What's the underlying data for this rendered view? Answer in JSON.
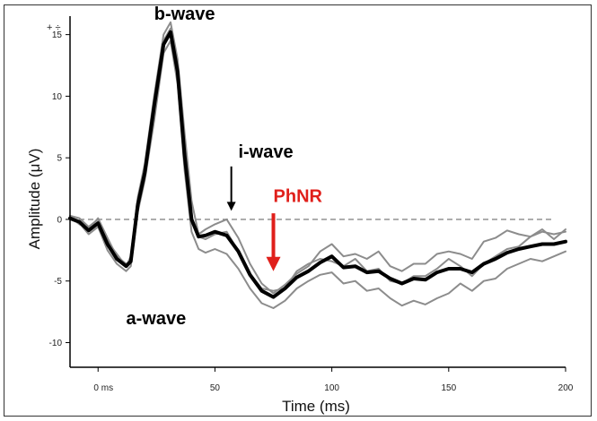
{
  "chart_data": {
    "type": "line",
    "xlabel": "Time (ms)",
    "ylabel": "Amplitude (μV)",
    "xlim": [
      -12,
      200
    ],
    "ylim": [
      -12,
      16.5
    ],
    "grid": false,
    "x_ticks": [
      0,
      50,
      100,
      150,
      200
    ],
    "x_tick_labels": [
      "0 ms",
      "50",
      "100",
      "150",
      "200"
    ],
    "y_ticks": [
      -10,
      -5,
      0,
      5,
      10,
      15
    ],
    "y_tick_labels": [
      "-10",
      "-5",
      "0",
      "5",
      "10",
      "15"
    ],
    "top_left_symbols": "+ ÷",
    "baseline": {
      "y": 0,
      "x_range": [
        -12,
        195
      ],
      "style": "dashed",
      "color": "#888888"
    },
    "series": [
      {
        "role": "individual trace 1",
        "color": "#8c8c8c",
        "x": [
          -12,
          -8,
          -4,
          0,
          4,
          8,
          12,
          14,
          17,
          20,
          24,
          28,
          31,
          34,
          37,
          40,
          43,
          46,
          50,
          55,
          60,
          65,
          70,
          75,
          80,
          85,
          90,
          95,
          100,
          105,
          110,
          115,
          120,
          125,
          130,
          135,
          140,
          145,
          150,
          155,
          160,
          165,
          170,
          175,
          180,
          185,
          190,
          195,
          200
        ],
        "y": [
          0.3,
          0.1,
          -0.6,
          0.0,
          -1.8,
          -2.8,
          -3.8,
          -3.0,
          1.8,
          4.5,
          10.0,
          15.0,
          16.0,
          13.0,
          7.0,
          1.5,
          -1.2,
          -0.8,
          -0.4,
          0.0,
          -1.5,
          -3.6,
          -5.2,
          -6.0,
          -5.3,
          -4.4,
          -3.8,
          -2.6,
          -2.0,
          -3.0,
          -2.8,
          -3.2,
          -2.6,
          -3.8,
          -4.2,
          -3.6,
          -3.6,
          -2.8,
          -2.6,
          -2.8,
          -3.2,
          -1.8,
          -1.5,
          -0.9,
          -1.2,
          -1.4,
          -1.0,
          -1.2,
          -1.0
        ]
      },
      {
        "role": "individual trace 2",
        "color": "#8c8c8c",
        "x": [
          -12,
          -8,
          -4,
          0,
          4,
          8,
          12,
          14,
          17,
          20,
          24,
          28,
          31,
          34,
          37,
          40,
          43,
          46,
          50,
          55,
          60,
          65,
          70,
          75,
          80,
          85,
          90,
          95,
          100,
          105,
          110,
          115,
          120,
          125,
          130,
          135,
          140,
          145,
          150,
          155,
          160,
          165,
          170,
          175,
          180,
          185,
          190,
          195,
          200
        ],
        "y": [
          0.0,
          -0.3,
          -1.2,
          -0.6,
          -2.5,
          -3.6,
          -4.2,
          -3.8,
          0.6,
          3.2,
          8.0,
          13.5,
          14.5,
          11.0,
          4.0,
          -1.0,
          -2.4,
          -2.7,
          -2.4,
          -2.8,
          -4.0,
          -5.6,
          -6.8,
          -7.2,
          -6.6,
          -5.6,
          -5.0,
          -4.5,
          -4.3,
          -5.2,
          -5.0,
          -5.8,
          -5.6,
          -6.4,
          -7.0,
          -6.6,
          -6.9,
          -6.4,
          -6.0,
          -5.2,
          -5.8,
          -5.0,
          -4.8,
          -4.0,
          -3.6,
          -3.2,
          -3.4,
          -3.0,
          -2.6
        ]
      },
      {
        "role": "individual trace 3",
        "color": "#8c8c8c",
        "x": [
          -12,
          -8,
          -4,
          0,
          4,
          8,
          12,
          14,
          17,
          20,
          24,
          28,
          31,
          34,
          37,
          40,
          43,
          46,
          50,
          55,
          60,
          65,
          70,
          75,
          80,
          85,
          90,
          95,
          100,
          105,
          110,
          115,
          120,
          125,
          130,
          135,
          140,
          145,
          150,
          155,
          160,
          165,
          170,
          175,
          180,
          185,
          190,
          195,
          200
        ],
        "y": [
          0.2,
          -0.4,
          -0.8,
          0.1,
          -1.5,
          -3.0,
          -3.6,
          -3.4,
          1.0,
          4.0,
          9.5,
          14.5,
          15.5,
          12.0,
          5.5,
          0.2,
          -1.4,
          -1.6,
          -1.2,
          -1.0,
          -2.6,
          -4.4,
          -5.6,
          -5.8,
          -5.6,
          -4.2,
          -3.6,
          -3.2,
          -3.4,
          -3.8,
          -3.2,
          -4.2,
          -4.0,
          -5.0,
          -5.2,
          -4.6,
          -4.6,
          -4.0,
          -3.2,
          -3.8,
          -4.6,
          -3.6,
          -3.0,
          -2.4,
          -2.2,
          -1.4,
          -0.8,
          -1.6,
          -0.8
        ]
      },
      {
        "role": "average",
        "color": "#000000",
        "x": [
          -12,
          -8,
          -4,
          0,
          4,
          8,
          12,
          14,
          17,
          20,
          24,
          28,
          31,
          34,
          37,
          40,
          43,
          46,
          50,
          55,
          60,
          65,
          70,
          75,
          80,
          85,
          90,
          95,
          100,
          105,
          110,
          115,
          120,
          125,
          130,
          135,
          140,
          145,
          150,
          155,
          160,
          165,
          170,
          175,
          180,
          185,
          190,
          195,
          200
        ],
        "y": [
          0.1,
          -0.2,
          -0.9,
          -0.3,
          -2.0,
          -3.2,
          -3.8,
          -3.4,
          1.2,
          3.8,
          9.2,
          14.2,
          15.2,
          12.0,
          5.2,
          0.0,
          -1.4,
          -1.3,
          -1.0,
          -1.3,
          -2.6,
          -4.5,
          -5.8,
          -6.3,
          -5.6,
          -4.7,
          -4.2,
          -3.5,
          -3.0,
          -3.9,
          -3.8,
          -4.3,
          -4.2,
          -4.8,
          -5.2,
          -4.8,
          -4.9,
          -4.3,
          -4.0,
          -4.0,
          -4.3,
          -3.6,
          -3.2,
          -2.7,
          -2.4,
          -2.2,
          -2.0,
          -2.0,
          -1.8
        ]
      }
    ],
    "annotations": [
      {
        "text": "b-wave",
        "color": "#000000",
        "x": 24,
        "y": 16.2
      },
      {
        "text": "a-wave",
        "color": "#000000",
        "x": 12,
        "y": -8.5
      },
      {
        "text": "i-wave",
        "color": "#000000",
        "x": 60,
        "y": 5.0
      },
      {
        "text": "PhNR",
        "color": "#e0201b",
        "x": 75,
        "y": 1.4
      }
    ],
    "arrows": [
      {
        "color": "#000000",
        "x": 57,
        "y_from": 4.3,
        "y_to": 0.7
      },
      {
        "color": "#e0201b",
        "x": 75,
        "y_from": 0.5,
        "y_to": -4.2
      }
    ]
  }
}
